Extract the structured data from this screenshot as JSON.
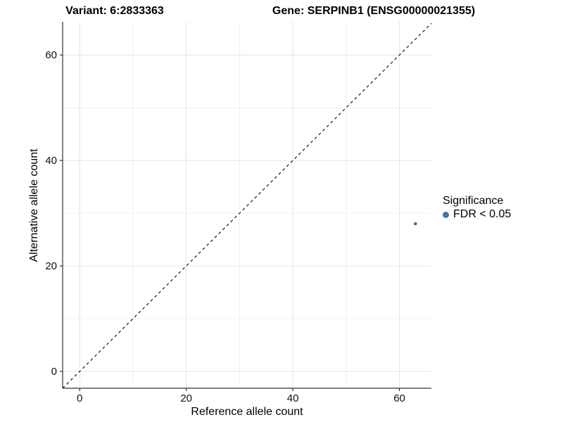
{
  "chart_data": {
    "type": "scatter",
    "title_left": "Variant: 6:2833363",
    "title_right": "Gene: SERPINB1 (ENSG00000021355)",
    "xlabel": "Reference allele count",
    "ylabel": "Alternative allele count",
    "xlim": [
      -3.2,
      66.0
    ],
    "ylim": [
      -3.2,
      66.3
    ],
    "x_ticks": [
      0,
      20,
      40,
      60
    ],
    "y_ticks": [
      0,
      20,
      40,
      60
    ],
    "x_minor_ticks": [
      10,
      30,
      50
    ],
    "y_minor_ticks": [
      10,
      30,
      50
    ],
    "grid": true,
    "points": [
      {
        "x": 63,
        "y": 28,
        "series": "FDR < 0.05"
      }
    ],
    "reference_line": {
      "type": "identity",
      "style": "dashed",
      "color": "#000000",
      "dash": "4 4"
    },
    "legend": {
      "title": "Significance",
      "position": "right",
      "entries": [
        {
          "label": "FDR < 0.05",
          "color": "#4376a8"
        }
      ]
    },
    "colors": {
      "point": "#4376a8",
      "grid_major": "#e4e4e4",
      "grid_minor": "#f0f0f0",
      "axis_line": "#333333",
      "background": "#ffffff"
    },
    "point_radius_px": 2.3
  }
}
